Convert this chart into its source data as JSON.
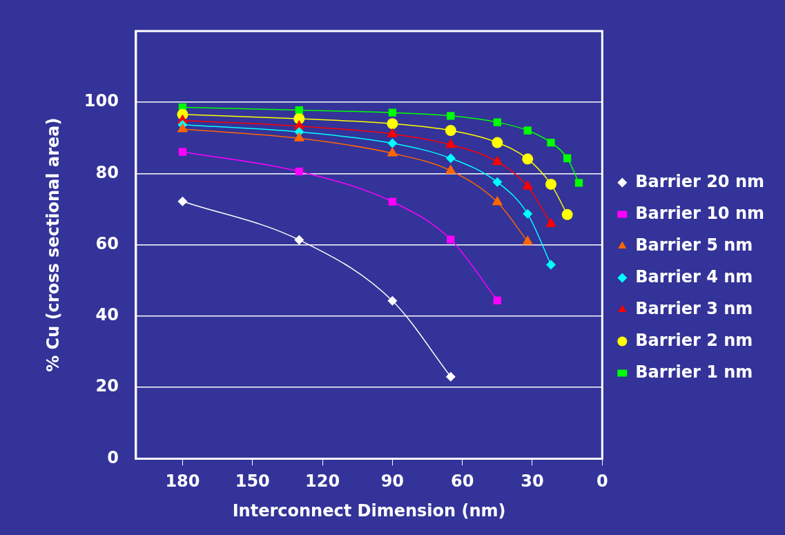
{
  "chart_data": {
    "type": "line",
    "xlabel": "Interconnect Dimension (nm)",
    "ylabel": "% Cu (cross sectional area)",
    "xlim": [
      200,
      0
    ],
    "xticks": [
      180,
      150,
      120,
      90,
      60,
      30,
      0
    ],
    "ylim": [
      0,
      120
    ],
    "yticks": [
      0,
      20,
      40,
      60,
      80,
      100
    ],
    "grid": "y",
    "legend": "right",
    "series": [
      {
        "name": "Barrier 20 nm",
        "color": "#ffffff",
        "marker": "diamond",
        "x": [
          180,
          130,
          90,
          65
        ],
        "values": [
          72.2,
          61.4,
          44.3,
          23.0
        ]
      },
      {
        "name": "Barrier 10 nm",
        "color": "#ff00ff",
        "marker": "square",
        "x": [
          180,
          130,
          90,
          65,
          45
        ],
        "values": [
          86.1,
          80.6,
          72.1,
          61.5,
          44.4
        ]
      },
      {
        "name": "Barrier 5 nm",
        "color": "#ff6600",
        "marker": "triangle",
        "x": [
          180,
          130,
          90,
          65,
          45,
          32
        ],
        "values": [
          92.5,
          89.9,
          85.7,
          80.8,
          72.0,
          60.9
        ]
      },
      {
        "name": "Barrier 4 nm",
        "color": "#00ffff",
        "marker": "diamond",
        "x": [
          180,
          130,
          90,
          65,
          45,
          32,
          22
        ],
        "values": [
          93.7,
          91.7,
          88.5,
          84.3,
          77.6,
          68.7,
          54.4
        ]
      },
      {
        "name": "Barrier 3 nm",
        "color": "#ff0000",
        "marker": "triangle",
        "x": [
          180,
          130,
          90,
          65,
          45,
          32,
          22
        ],
        "values": [
          94.9,
          93.3,
          91.1,
          88.1,
          83.3,
          76.4,
          65.9
        ]
      },
      {
        "name": "Barrier 2 nm",
        "color": "#ffff00",
        "marker": "circle",
        "x": [
          180,
          130,
          90,
          65,
          45,
          32,
          22,
          15
        ],
        "values": [
          96.6,
          95.4,
          94.0,
          92.1,
          88.7,
          84.1,
          77.0,
          68.5
        ]
      },
      {
        "name": "Barrier 1 nm",
        "color": "#00ff00",
        "marker": "square",
        "x": [
          180,
          130,
          90,
          65,
          45,
          32,
          22,
          15,
          10
        ],
        "values": [
          98.6,
          97.8,
          97.1,
          96.2,
          94.4,
          92.1,
          88.7,
          84.3,
          77.4
        ]
      }
    ]
  }
}
